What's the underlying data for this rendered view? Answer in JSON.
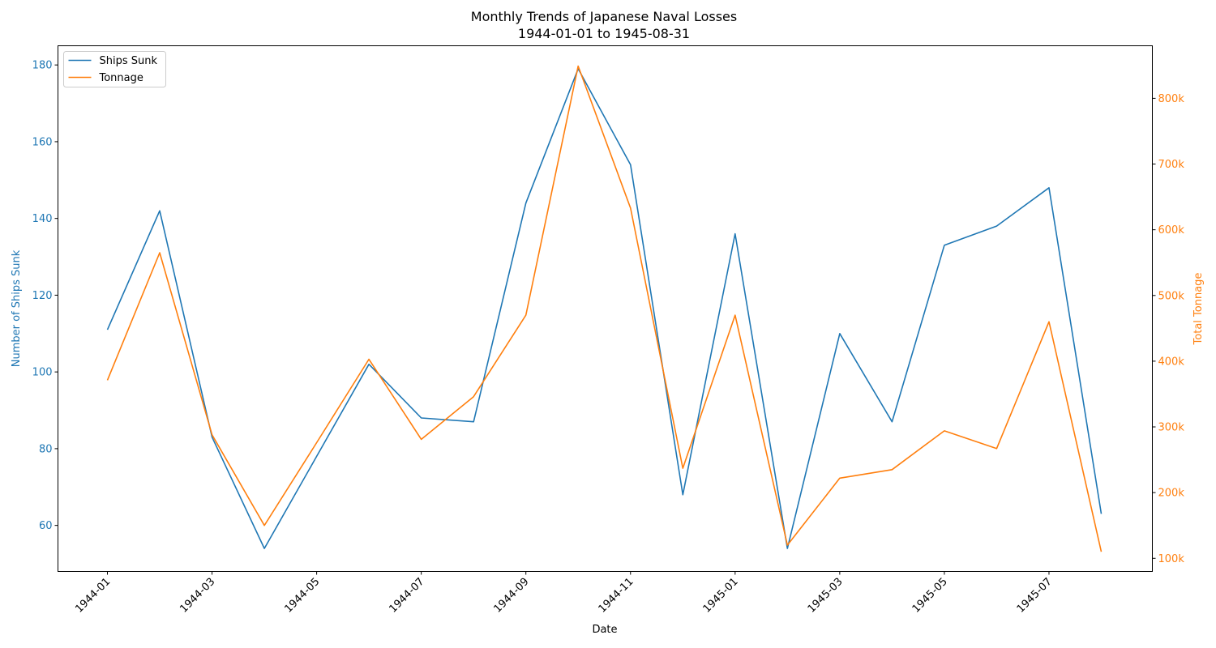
{
  "chart_data": {
    "type": "line",
    "title": "Monthly Trends of Japanese Naval Losses",
    "subtitle": "1944-01-01 to 1945-08-31",
    "xlabel": "Date",
    "ylabel_left": "Number of Ships Sunk",
    "ylabel_right": "Total Tonnage",
    "x": [
      "1944-01",
      "1944-02",
      "1944-03",
      "1944-04",
      "1944-05",
      "1944-06",
      "1944-07",
      "1944-08",
      "1944-09",
      "1944-10",
      "1944-11",
      "1944-12",
      "1945-01",
      "1945-02",
      "1945-03",
      "1945-04",
      "1945-05",
      "1945-06",
      "1945-07",
      "1945-08"
    ],
    "x_tick_labels": [
      "1944-01",
      "1944-03",
      "1944-05",
      "1944-07",
      "1944-09",
      "1944-11",
      "1945-01",
      "1945-03",
      "1945-05",
      "1945-07"
    ],
    "series": [
      {
        "name": "Ships Sunk",
        "axis": "left",
        "color": "#1f77b4",
        "values": [
          111,
          142,
          83,
          54,
          78,
          102,
          88,
          87,
          144,
          179,
          154,
          68,
          136,
          54,
          110,
          87,
          133,
          138,
          148,
          63
        ]
      },
      {
        "name": "Tonnage",
        "axis": "right",
        "color": "#ff7f0e",
        "values": [
          371000,
          565000,
          288000,
          150000,
          276000,
          403000,
          281000,
          346000,
          470000,
          849000,
          633000,
          237000,
          470000,
          120000,
          222000,
          235000,
          294000,
          267000,
          460000,
          110000
        ]
      }
    ],
    "ylim_left": [
      48,
      185
    ],
    "yticks_left": [
      60,
      80,
      100,
      120,
      140,
      160,
      180
    ],
    "ylim_right": [
      80000,
      880000
    ],
    "yticks_right": [
      100000,
      200000,
      300000,
      400000,
      500000,
      600000,
      700000,
      800000
    ],
    "yticks_right_labels": [
      "100k",
      "200k",
      "300k",
      "400k",
      "500k",
      "600k",
      "700k",
      "800k"
    ],
    "legend": {
      "placement": "top-left",
      "entries": [
        "Ships Sunk",
        "Tonnage"
      ]
    },
    "grid": false
  }
}
